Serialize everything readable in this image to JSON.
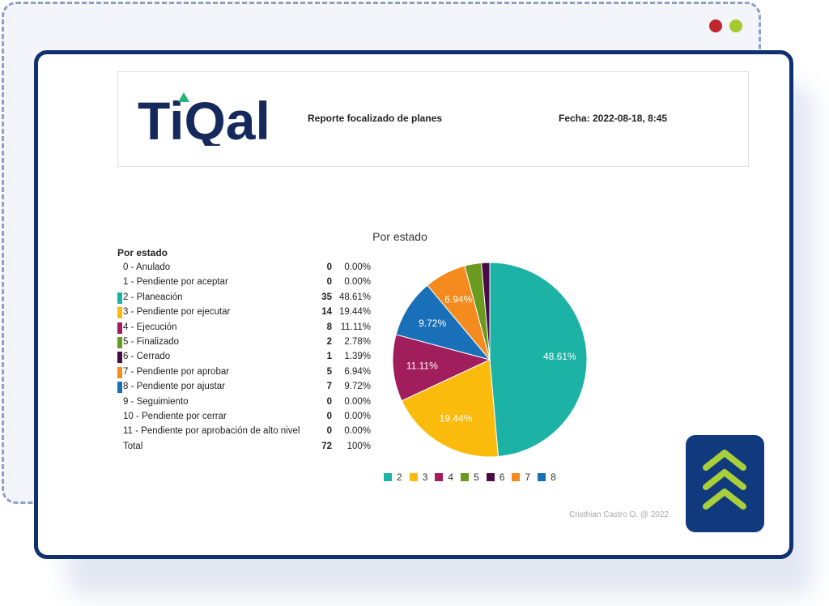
{
  "window": {
    "controls": [
      "red-dot",
      "green-dot"
    ],
    "colors": {
      "frame": "#10316f",
      "dashed": "#8da0c8",
      "red": "#c0272d",
      "green": "#a6c92f"
    }
  },
  "header": {
    "logo_text": "TiQal",
    "title": "Reporte focalizado de planes",
    "date": "Fecha: 2022-08-18, 8:45"
  },
  "table": {
    "heading": "Por estado",
    "rows": [
      {
        "label": "0 - Anulado",
        "count": "0",
        "pct": "0.00%",
        "color": ""
      },
      {
        "label": "1 - Pendiente por aceptar",
        "count": "0",
        "pct": "0.00%",
        "color": ""
      },
      {
        "label": "2 - Planeación",
        "count": "35",
        "pct": "48.61%",
        "color": "#1cb3a6"
      },
      {
        "label": "3 - Pendiente por ejecutar",
        "count": "14",
        "pct": "19.44%",
        "color": "#fbbb0c"
      },
      {
        "label": "4 - Ejecución",
        "count": "8",
        "pct": "11.11%",
        "color": "#a11e5d"
      },
      {
        "label": "5 - Finalizado",
        "count": "2",
        "pct": "2.78%",
        "color": "#6a9a1f"
      },
      {
        "label": "6 - Cerrado",
        "count": "1",
        "pct": "1.39%",
        "color": "#4a0a46"
      },
      {
        "label": "7 - Pendiente por aprobar",
        "count": "5",
        "pct": "6.94%",
        "color": "#f58a1f"
      },
      {
        "label": "8 - Pendiente por ajustar",
        "count": "7",
        "pct": "9.72%",
        "color": "#1a70b8"
      },
      {
        "label": "9 - Seguimiento",
        "count": "0",
        "pct": "0.00%",
        "color": ""
      },
      {
        "label": "10 - Pendiente por cerrar",
        "count": "0",
        "pct": "0.00%",
        "color": ""
      },
      {
        "label": "11 - Pendiente por aprobación de alto nivel",
        "count": "0",
        "pct": "0.00%",
        "color": ""
      },
      {
        "label": "Total",
        "count": "72",
        "pct": "100%",
        "color": ""
      }
    ]
  },
  "chart_data": {
    "type": "pie",
    "title": "Por estado",
    "slices": [
      {
        "name": "2",
        "value": 35,
        "pct_label": "48.61%",
        "color": "#1cb3a6"
      },
      {
        "name": "3",
        "value": 14,
        "pct_label": "19.44%",
        "color": "#fbbb0c"
      },
      {
        "name": "4",
        "value": 8,
        "pct_label": "11.11%",
        "color": "#a11e5d"
      },
      {
        "name": "8",
        "value": 7,
        "pct_label": "9.72%",
        "color": "#1a70b8"
      },
      {
        "name": "7",
        "value": 5,
        "pct_label": "6.94%",
        "color": "#f58a1f"
      },
      {
        "name": "5",
        "value": 2,
        "pct_label": "",
        "color": "#6a9a1f"
      },
      {
        "name": "6",
        "value": 1,
        "pct_label": "",
        "color": "#4a0a46"
      }
    ],
    "legend": [
      {
        "name": "2",
        "color": "#1cb3a6"
      },
      {
        "name": "3",
        "color": "#fbbb0c"
      },
      {
        "name": "4",
        "color": "#a11e5d"
      },
      {
        "name": "5",
        "color": "#6a9a1f"
      },
      {
        "name": "6",
        "color": "#4a0a46"
      },
      {
        "name": "7",
        "color": "#f58a1f"
      },
      {
        "name": "8",
        "color": "#1a70b8"
      }
    ],
    "legend_position": "bottom"
  },
  "footer": {
    "author": "Cristhian Castro O. @ 2022"
  },
  "badge": {
    "icon": "triple-chevron-up-icon",
    "bg": "#113a7e",
    "fg": "#a9cf3a"
  }
}
